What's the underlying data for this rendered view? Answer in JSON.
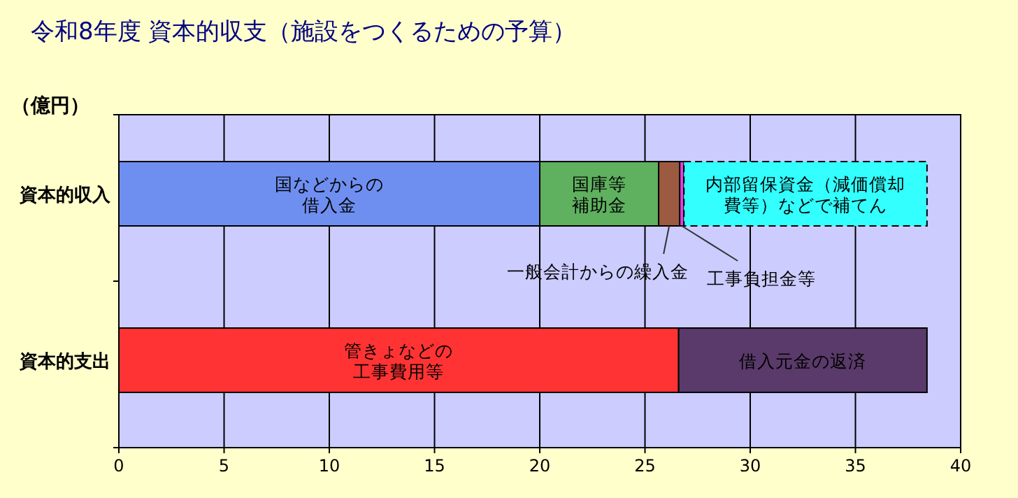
{
  "chart_data": {
    "type": "bar",
    "orientation": "horizontal",
    "stacked": true,
    "title": "令和8年度 資本的収支（施設をつくるための予算）",
    "categories": [
      "資本的収入",
      "資本的支出"
    ],
    "series": [
      {
        "name": "国などからの借入金",
        "color": "#6f8ff0",
        "values": [
          20.0,
          null
        ]
      },
      {
        "name": "国庫等補助金",
        "color": "#5fb05f",
        "values": [
          5.65,
          null
        ]
      },
      {
        "name": "一般会計からの繰入金",
        "color": "#9c5a40",
        "values": [
          1.0,
          null
        ]
      },
      {
        "name": "工事負担金等",
        "color": "#e040e0",
        "values": [
          0.2,
          null
        ]
      },
      {
        "name": "内部留保資金（減価償却費等）などで補てん",
        "color": "#33ffff",
        "values": [
          11.55,
          null
        ],
        "line_style": "dashed"
      },
      {
        "name": "管きょなどの工事費用等",
        "color": "#ff3333",
        "values": [
          null,
          26.6
        ]
      },
      {
        "name": "借入元金の返済",
        "color": "#5a3a6a",
        "values": [
          null,
          11.8
        ]
      }
    ],
    "xlim": [
      0,
      40
    ],
    "xticks": [
      0,
      5,
      10,
      15,
      20,
      25,
      30,
      35,
      40
    ],
    "grid": "x",
    "annotations": [
      "（億円）"
    ]
  }
}
